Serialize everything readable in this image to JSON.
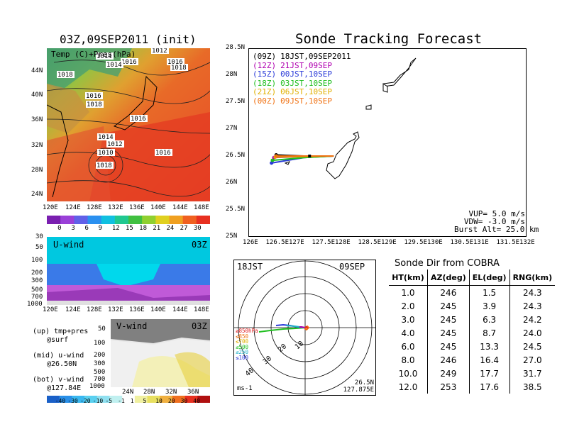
{
  "left": {
    "main_title": "03Z,09SEP2011 (init)",
    "map_label": "Temp (C)+Pres(hPa)",
    "lat_ticks": [
      "44N",
      "40N",
      "36N",
      "32N",
      "28N",
      "24N"
    ],
    "lon_ticks": [
      "120E",
      "124E",
      "128E",
      "132E",
      "136E",
      "140E",
      "144E",
      "148E"
    ],
    "isobars": [
      "1012",
      "1014",
      "1016",
      "1014",
      "1018",
      "1016",
      "1018",
      "1016",
      "1018",
      "1016",
      "1014",
      "1012",
      "1010",
      "1018",
      "1016"
    ],
    "temp_colorbar": [
      "0",
      "3",
      "6",
      "9",
      "12",
      "15",
      "18",
      "21",
      "24",
      "27",
      "30"
    ],
    "uwind": {
      "label": "U-wind",
      "time": "03Z",
      "pres_ticks": [
        "30",
        "50",
        "100",
        "200",
        "300",
        "500",
        "700",
        "1000"
      ],
      "lon_ticks": [
        "120E",
        "124E",
        "128E",
        "132E",
        "136E",
        "140E",
        "144E",
        "148E"
      ]
    },
    "vwind": {
      "label": "V-wind",
      "time": "03Z",
      "pres_ticks": [
        "50",
        "100",
        "200",
        "300",
        "500",
        "700",
        "1000"
      ],
      "lat_ticks": [
        "24N",
        "28N",
        "32N",
        "36N"
      ]
    },
    "legend_lines": [
      "(up) tmp+pres",
      "@surf",
      "(mid) u-wind",
      "@26.50N",
      "(bot) v-wind",
      "@127.84E"
    ],
    "wind_colorbar": [
      "-40",
      "-30",
      "-20",
      "-10",
      "-5",
      "-1",
      "1",
      "5",
      "10",
      "20",
      "30",
      "40"
    ]
  },
  "tracking": {
    "title": "Sonde Tracking Forecast",
    "lat_ticks": [
      "28.5N",
      "28N",
      "27.5N",
      "27N",
      "26.5N",
      "26N",
      "25.5N",
      "25N"
    ],
    "lon_ticks": [
      "126E",
      "126.5E",
      "127E",
      "127.5E",
      "128E",
      "128.5E",
      "129E",
      "129.5E",
      "130E",
      "130.5E",
      "131E",
      "131.5E",
      "132E"
    ],
    "launches": [
      {
        "code": "(09Z)",
        "local": "18JST,09SEP2011",
        "color": "#000000"
      },
      {
        "code": "(12Z)",
        "local": "21JST,09SEP",
        "color": "#b000b0"
      },
      {
        "code": "(15Z)",
        "local": "00JST,10SEP",
        "color": "#2a3ad8"
      },
      {
        "code": "(18Z)",
        "local": "03JST,10SEP",
        "color": "#1fbf1f"
      },
      {
        "code": "(21Z)",
        "local": "06JST,10SEP",
        "color": "#e0b000"
      },
      {
        "code": "(00Z)",
        "local": "09JST,10SEP",
        "color": "#f07010"
      }
    ],
    "vup": "VUP=  5.0 m/s",
    "vdw": "VDW= -3.0 m/s",
    "burst": "Burst Alt= 25.0 km"
  },
  "polar": {
    "time": "18JST",
    "date": "09SEP",
    "ring_labels": [
      "10",
      "20",
      "30",
      "40"
    ],
    "level_labels": [
      "≥850hPa",
      "≤850",
      "≤700",
      "≤500",
      "≤250",
      "≤100"
    ],
    "unit": "ms-1",
    "lat": "26.5N",
    "lon": "127.875E"
  },
  "sonde_table": {
    "title": "Sonde Dir from COBRA",
    "headers": [
      "HT(km)",
      "AZ(deg)",
      "EL(deg)",
      "RNG(km)"
    ],
    "rows": [
      [
        "1.0",
        "246",
        "1.5",
        "24.3"
      ],
      [
        "2.0",
        "245",
        "3.9",
        "24.3"
      ],
      [
        "3.0",
        "245",
        "6.3",
        "24.2"
      ],
      [
        "4.0",
        "245",
        "8.7",
        "24.0"
      ],
      [
        "6.0",
        "245",
        "13.3",
        "24.5"
      ],
      [
        "8.0",
        "246",
        "16.4",
        "27.0"
      ],
      [
        "10.0",
        "249",
        "17.7",
        "31.7"
      ],
      [
        "12.0",
        "253",
        "17.6",
        "38.5"
      ]
    ]
  },
  "chart_data": [
    {
      "type": "heatmap",
      "title": "03Z,09SEP2011 (init)",
      "subtitle": "Temp (C)+Pres(hPa)",
      "x_ticks": [
        "120E",
        "124E",
        "128E",
        "132E",
        "136E",
        "140E",
        "144E",
        "148E"
      ],
      "y_ticks": [
        "44N",
        "40N",
        "36N",
        "32N",
        "28N",
        "24N"
      ],
      "colorbar": [
        0,
        3,
        6,
        9,
        12,
        15,
        18,
        21,
        24,
        27,
        30
      ],
      "contour_labels_hPa": [
        1012,
        1014,
        1016,
        1014,
        1018,
        1016,
        1018,
        1016,
        1018,
        1016,
        1014,
        1012,
        1010,
        1018,
        1016
      ]
    },
    {
      "type": "line",
      "title": "Sonde Tracking Forecast",
      "xlim": [
        126,
        132
      ],
      "ylim": [
        25,
        28.5
      ],
      "series": [
        {
          "name": "18JST,09SEP2011",
          "x": [
            127.84,
            127.2,
            126.6
          ],
          "y": [
            26.5,
            26.5,
            26.52
          ]
        },
        {
          "name": "21JST,09SEP",
          "x": [
            127.84,
            127.2,
            126.55
          ],
          "y": [
            26.5,
            26.49,
            26.47
          ]
        },
        {
          "name": "00JST,10SEP",
          "x": [
            127.84,
            127.2,
            126.5
          ],
          "y": [
            26.5,
            26.47,
            26.37
          ]
        },
        {
          "name": "03JST,10SEP",
          "x": [
            127.84,
            127.2,
            126.52
          ],
          "y": [
            26.5,
            26.47,
            26.42
          ]
        },
        {
          "name": "06JST,10SEP",
          "x": [
            127.84,
            127.2,
            126.58
          ],
          "y": [
            26.5,
            26.49,
            26.48
          ]
        },
        {
          "name": "09JST,10SEP",
          "x": [
            127.84,
            127.2,
            126.6
          ],
          "y": [
            26.5,
            26.5,
            26.5
          ]
        }
      ],
      "annotations": [
        "VUP=  5.0 m/s",
        "VDW= -3.0 m/s",
        "Burst Alt= 25.0 km"
      ]
    },
    {
      "type": "table",
      "title": "Sonde Dir from COBRA",
      "columns": [
        "HT(km)",
        "AZ(deg)",
        "EL(deg)",
        "RNG(km)"
      ],
      "rows": [
        [
          1.0,
          246,
          1.5,
          24.3
        ],
        [
          2.0,
          245,
          3.9,
          24.3
        ],
        [
          3.0,
          245,
          6.3,
          24.2
        ],
        [
          4.0,
          245,
          8.7,
          24.0
        ],
        [
          6.0,
          245,
          13.3,
          24.5
        ],
        [
          8.0,
          246,
          16.4,
          27.0
        ],
        [
          10.0,
          249,
          17.7,
          31.7
        ],
        [
          12.0,
          253,
          17.6,
          38.5
        ]
      ]
    },
    {
      "type": "heatmap",
      "subtitle": "U-wind 03Z",
      "x_ticks": [
        "120E",
        "124E",
        "128E",
        "132E",
        "136E",
        "140E",
        "144E",
        "148E"
      ],
      "y_ticks_hPa": [
        30,
        50,
        100,
        200,
        300,
        500,
        700,
        1000
      ]
    },
    {
      "type": "heatmap",
      "subtitle": "V-wind 03Z",
      "x_ticks": [
        "24N",
        "28N",
        "32N",
        "36N"
      ],
      "y_ticks_hPa": [
        50,
        100,
        200,
        300,
        500,
        700,
        1000
      ],
      "colorbar": [
        -40,
        -30,
        -20,
        -10,
        -5,
        -1,
        1,
        5,
        10,
        20,
        30,
        40
      ]
    }
  ]
}
